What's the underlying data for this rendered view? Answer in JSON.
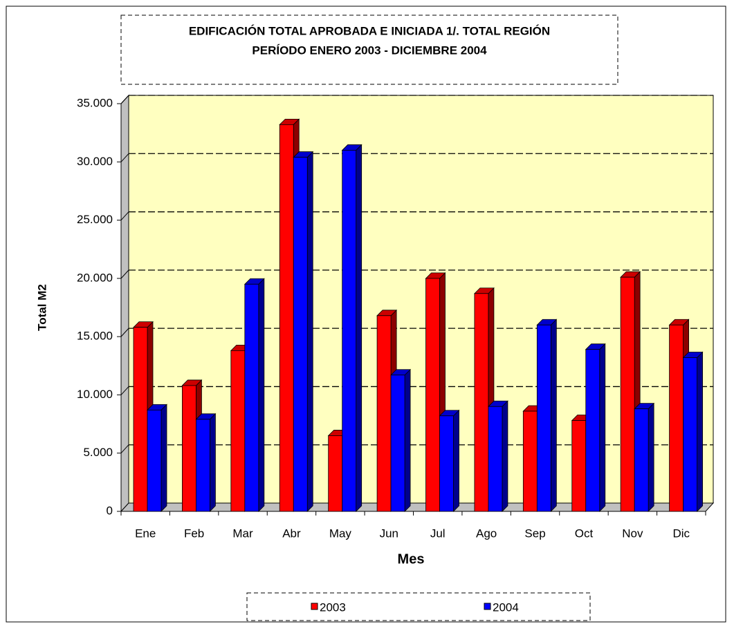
{
  "chart_data": {
    "type": "bar3d",
    "title_lines": [
      "EDIFICACIÓN TOTAL APROBADA E INICIADA 1/. TOTAL REGIÓN",
      "PERÍODO ENERO 2003 - DICIEMBRE 2004"
    ],
    "x_label": "Mes",
    "y_label": "Total M2",
    "categories": [
      "Ene",
      "Feb",
      "Mar",
      "Abr",
      "May",
      "Jun",
      "Jul",
      "Ago",
      "Sep",
      "Oct",
      "Nov",
      "Dic"
    ],
    "series": [
      {
        "name": "2003",
        "color": "#ff0000",
        "values": [
          15800,
          10800,
          13800,
          33200,
          6500,
          16800,
          20000,
          18700,
          8600,
          7800,
          20100,
          16000
        ]
      },
      {
        "name": "2004",
        "color": "#0000ff",
        "values": [
          8700,
          7900,
          19500,
          30400,
          31000,
          11700,
          8200,
          9000,
          16000,
          13900,
          8800,
          13200
        ]
      }
    ],
    "ylim": [
      0,
      35000
    ],
    "yticks": [
      0,
      {
        "value": 5000,
        "label": "5.000"
      },
      {
        "value": 10000,
        "label": "10.000"
      },
      {
        "value": 15000,
        "label": "15.000"
      },
      {
        "value": 20000,
        "label": "20.000"
      },
      {
        "value": 25000,
        "label": "25.000"
      },
      {
        "value": 30000,
        "label": "30.000"
      },
      {
        "value": 35000,
        "label": "35.000"
      }
    ],
    "grid": true,
    "wall_color": "#ffffc0"
  }
}
